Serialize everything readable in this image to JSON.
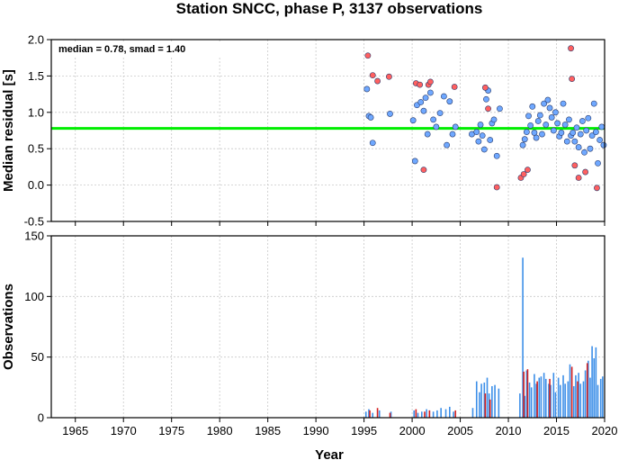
{
  "title": "Station SNCC, phase P, 3137 observations",
  "chart_data": [
    {
      "type": "scatter",
      "ylabel": "Median residual [s]",
      "annotation": "median = 0.78, smad = 1.40",
      "xlim": [
        1962.5,
        2020
      ],
      "ylim": [
        -0.5,
        2.0
      ],
      "yticks": [
        "2.0",
        "1.5",
        "1.0",
        "0.5",
        "0.0",
        "-0.5"
      ],
      "median_line": 0.78,
      "colors": {
        "median_line": "#00ee00",
        "normal": "#6fa8ff",
        "outlier": "#ff6060"
      },
      "series": [
        {
          "type": "normal",
          "x": [
            1995.3,
            1995.5,
            1995.7,
            1995.9,
            1997.7,
            2000.1,
            2000.3,
            2000.5,
            2000.9,
            2001.2,
            2001.4,
            2001.6,
            2001.9,
            2002.2,
            2002.5,
            2002.9,
            2003.3,
            2003.6,
            2003.9,
            2004.2,
            2004.5,
            2006.2,
            2006.7,
            2006.9,
            2007.1,
            2007.3,
            2007.5,
            2007.7,
            2007.9,
            2008.1,
            2008.3,
            2008.5,
            2008.8,
            2009.1,
            2011.5,
            2011.7,
            2011.9,
            2012.1,
            2012.3,
            2012.5,
            2012.7,
            2012.9,
            2013.1,
            2013.3,
            2013.5,
            2013.7,
            2013.9,
            2014.1,
            2014.3,
            2014.5,
            2014.7,
            2014.9,
            2015.1,
            2015.3,
            2015.5,
            2015.7,
            2015.9,
            2016.1,
            2016.3,
            2016.5,
            2016.7,
            2016.9,
            2017.1,
            2017.3,
            2017.5,
            2017.7,
            2017.9,
            2018.1,
            2018.3,
            2018.5,
            2018.7,
            2018.9,
            2019.1,
            2019.3,
            2019.5,
            2019.7,
            2019.9
          ],
          "y": [
            1.32,
            0.95,
            0.93,
            0.58,
            0.98,
            0.89,
            0.33,
            1.1,
            1.14,
            1.02,
            1.2,
            0.7,
            1.27,
            0.9,
            0.8,
            0.99,
            1.22,
            0.55,
            1.15,
            0.7,
            0.8,
            0.7,
            0.73,
            0.6,
            0.83,
            0.68,
            0.49,
            1.18,
            1.3,
            0.62,
            0.85,
            0.9,
            0.4,
            1.05,
            0.55,
            0.63,
            0.73,
            0.95,
            0.82,
            1.08,
            0.72,
            0.65,
            0.88,
            0.96,
            0.7,
            1.12,
            0.83,
            1.17,
            1.06,
            0.93,
            0.75,
            1.0,
            0.85,
            0.67,
            0.72,
            1.12,
            0.83,
            0.6,
            0.9,
            0.68,
            0.72,
            0.6,
            0.79,
            0.52,
            0.7,
            0.88,
            0.45,
            0.75,
            0.92,
            0.5,
            0.68,
            1.12,
            0.73,
            0.3,
            0.62,
            0.8,
            0.55
          ]
        },
        {
          "type": "outlier",
          "x": [
            1995.4,
            1995.9,
            1996.4,
            1997.6,
            2000.4,
            2000.8,
            2001.2,
            2001.7,
            2001.9,
            2004.4,
            2007.6,
            2007.9,
            2008.8,
            2011.3,
            2011.6,
            2012.0,
            2016.5,
            2016.6,
            2016.9,
            2017.3,
            2018.0,
            2019.2
          ],
          "y": [
            1.78,
            1.51,
            1.43,
            1.49,
            1.4,
            1.38,
            0.21,
            1.38,
            1.42,
            1.35,
            1.34,
            1.05,
            -0.03,
            0.1,
            0.15,
            0.21,
            1.88,
            1.46,
            0.27,
            0.1,
            0.18,
            -0.04
          ]
        }
      ]
    },
    {
      "type": "bar",
      "xlabel": "Year",
      "ylabel": "Observations",
      "xlim": [
        1962.5,
        2020
      ],
      "ylim": [
        0,
        150
      ],
      "yticks": [
        "150",
        "100",
        "50",
        "0"
      ],
      "xticks": [
        "1965",
        "1970",
        "1975",
        "1980",
        "1985",
        "1990",
        "1995",
        "2000",
        "2005",
        "2010",
        "2015",
        "2020"
      ],
      "colors": {
        "normal": "#3d8fe8",
        "outlier": "#d42020"
      },
      "series": [
        {
          "type": "normal",
          "x": [
            1995.2,
            1995.5,
            1995.9,
            1996.6,
            1997.8,
            2000.2,
            2000.6,
            2001.0,
            2001.5,
            2001.8,
            2002.2,
            2002.6,
            2003.0,
            2003.5,
            2003.9,
            2004.3,
            2006.3,
            2006.7,
            2007.0,
            2007.2,
            2007.5,
            2007.8,
            2008.0,
            2008.3,
            2008.6,
            2009.0,
            2011.2,
            2011.5,
            2011.7,
            2011.9,
            2012.2,
            2012.4,
            2012.7,
            2012.9,
            2013.2,
            2013.4,
            2013.7,
            2013.9,
            2014.2,
            2014.4,
            2014.7,
            2014.9,
            2015.2,
            2015.4,
            2015.7,
            2015.9,
            2016.2,
            2016.4,
            2016.8,
            2017.0,
            2017.3,
            2017.5,
            2017.8,
            2018.0,
            2018.3,
            2018.5,
            2018.7,
            2018.9,
            2019.1,
            2019.3,
            2019.6,
            2019.8
          ],
          "values": [
            5,
            7,
            4,
            6,
            5,
            6,
            4,
            5,
            7,
            6,
            5,
            6,
            8,
            7,
            9,
            5,
            8,
            30,
            21,
            28,
            29,
            33,
            20,
            26,
            27,
            24,
            20,
            132,
            18,
            39,
            29,
            25,
            36,
            28,
            33,
            34,
            37,
            32,
            28,
            27,
            37,
            21,
            33,
            27,
            35,
            28,
            30,
            44,
            26,
            35,
            37,
            28,
            30,
            39,
            47,
            33,
            59,
            49,
            58,
            27,
            32,
            34
          ]
        },
        {
          "type": "outlier",
          "x": [
            1995.6,
            1996.4,
            1997.7,
            2000.4,
            2001.3,
            2001.8,
            2004.5,
            2007.6,
            2008.1,
            2011.6,
            2012.0,
            2013.0,
            2014.3,
            2016.6,
            2017.2,
            2018.2
          ],
          "values": [
            6,
            8,
            4,
            7,
            5,
            6,
            6,
            20,
            15,
            38,
            40,
            30,
            32,
            42,
            30,
            45
          ]
        }
      ]
    }
  ]
}
